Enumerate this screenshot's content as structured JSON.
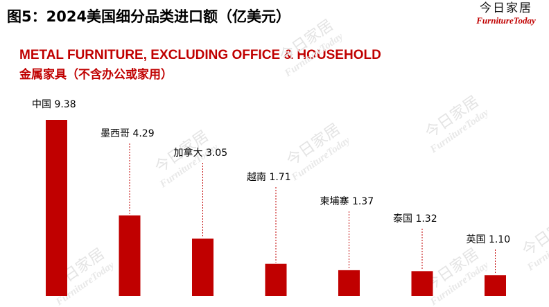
{
  "header": {
    "figure_title": "图5：2024美国细分品类进口额（亿美元）",
    "brand_cn": "今日家居",
    "brand_en": "FurnitureToday"
  },
  "chart_data": {
    "type": "bar",
    "title": "METAL FURNITURE, EXCLUDING OFFICE & HOUSEHOLD",
    "subtitle": "金属家具（不含办公或家用）",
    "categories": [
      "中国",
      "墨西哥",
      "加拿大",
      "越南",
      "柬埔寨",
      "泰国",
      "英国"
    ],
    "values": [
      9.38,
      4.29,
      3.05,
      1.71,
      1.37,
      1.32,
      1.1
    ],
    "ylim": [
      0,
      9.38
    ],
    "xlabel": "",
    "ylabel": "",
    "grid": false,
    "bar_color": "#c00000"
  },
  "colors": {
    "accent": "#c00000",
    "leader_line": "#c00000"
  }
}
